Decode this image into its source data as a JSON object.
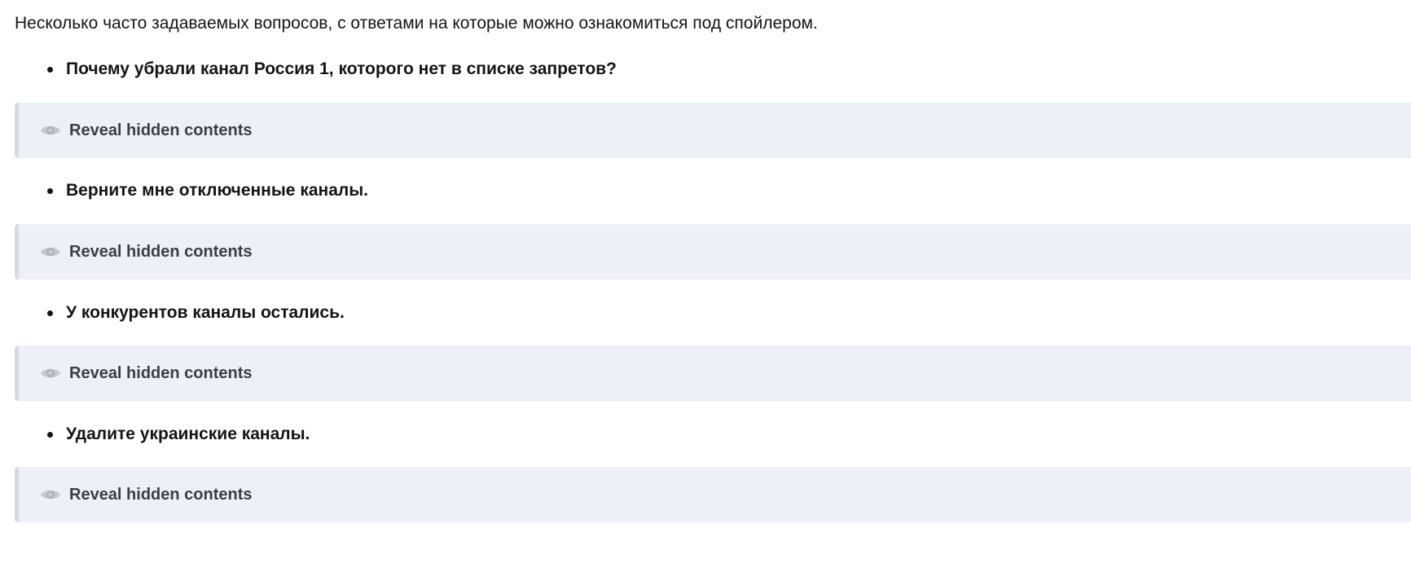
{
  "intro": "Несколько часто задаваемых вопросов, с ответами на которые можно ознакомиться под спойлером.",
  "faq": [
    {
      "question": "Почему убрали канал Россия 1, которого нет в списке запретов?",
      "spoiler_label": "Reveal hidden contents",
      "icon": "eye-icon"
    },
    {
      "question": "Верните мне отключенные каналы.",
      "spoiler_label": "Reveal hidden contents",
      "icon": "eye-icon"
    },
    {
      "question": "У конкурентов каналы остались.",
      "spoiler_label": "Reveal hidden contents",
      "icon": "eye-icon"
    },
    {
      "question": "Удалите украинские каналы.",
      "spoiler_label": "Reveal hidden contents",
      "icon": "eye-icon"
    }
  ],
  "colors": {
    "spoiler_bg": "#ecf0f7",
    "spoiler_border": "#d6dae1",
    "label": "#3a3e46"
  }
}
